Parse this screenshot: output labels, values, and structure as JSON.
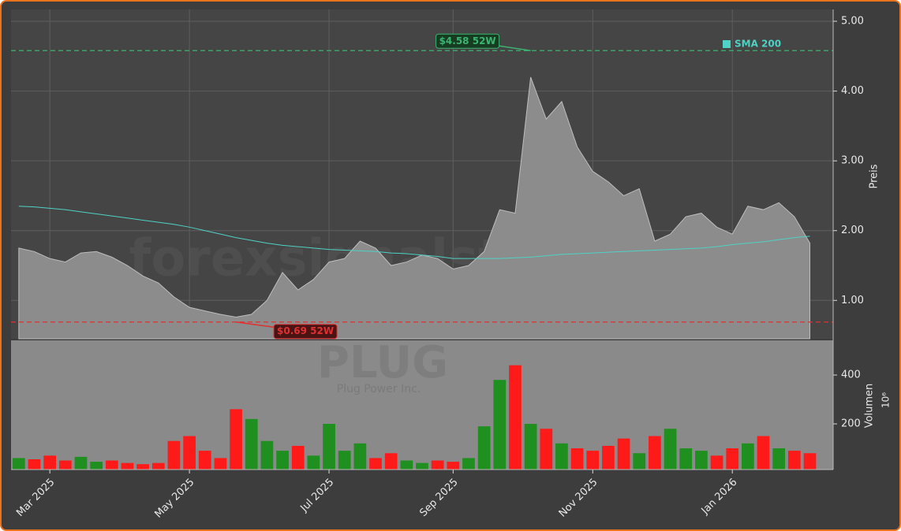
{
  "chart_data": {
    "type": "stock",
    "watermark": "forexsignalstrade",
    "symbol": "PLUG",
    "company": "Plug Power Inc.",
    "y_label": "Preis",
    "categories": [
      null,
      null,
      "Mar 2025",
      null,
      null,
      null,
      null,
      null,
      null,
      null,
      null,
      "May 2025",
      null,
      null,
      null,
      null,
      null,
      null,
      null,
      null,
      "Jul 2025",
      null,
      null,
      null,
      null,
      null,
      null,
      null,
      "Sep 2025",
      null,
      null,
      null,
      null,
      null,
      null,
      null,
      null,
      "Nov 2025",
      null,
      null,
      null,
      null,
      null,
      null,
      null,
      null,
      "Jan 2026",
      null,
      null,
      null,
      null,
      null
    ],
    "series": [
      {
        "color": "#8c8c8c",
        "values": [
          1.75,
          1.7,
          1.6,
          1.55,
          1.68,
          1.7,
          1.62,
          1.5,
          1.35,
          1.25,
          1.05,
          0.9,
          0.85,
          0.8,
          0.76,
          0.8,
          1.0,
          1.4,
          1.15,
          1.3,
          1.55,
          1.6,
          1.85,
          1.75,
          1.5,
          1.55,
          1.65,
          1.6,
          1.45,
          1.5,
          1.7,
          2.3,
          2.25,
          4.2,
          3.6,
          3.85,
          3.2,
          2.85,
          2.7,
          2.5,
          2.6,
          1.85,
          1.95,
          2.2,
          2.25,
          2.05,
          1.95,
          2.35,
          2.3,
          2.4,
          2.2,
          1.82
        ]
      },
      {
        "name": "SMA 200",
        "color": "#4fd1c5",
        "values": [
          2.35,
          2.34,
          2.32,
          2.3,
          2.27,
          2.24,
          2.21,
          2.18,
          2.15,
          2.12,
          2.09,
          2.05,
          2.0,
          1.95,
          1.9,
          1.86,
          1.82,
          1.79,
          1.77,
          1.75,
          1.73,
          1.72,
          1.71,
          1.7,
          1.68,
          1.67,
          1.65,
          1.63,
          1.6,
          1.6,
          1.6,
          1.6,
          1.61,
          1.62,
          1.64,
          1.66,
          1.67,
          1.68,
          1.69,
          1.7,
          1.71,
          1.72,
          1.73,
          1.74,
          1.75,
          1.77,
          1.8,
          1.82,
          1.84,
          1.87,
          1.9,
          1.92
        ]
      }
    ],
    "ylim": [
      0.45,
      5.17
    ],
    "yticks": [
      {
        "value": 1,
        "label": "1.00"
      },
      {
        "value": 2,
        "label": "2.00"
      },
      {
        "value": 3,
        "label": "3.00"
      },
      {
        "value": 4,
        "label": "4.00"
      },
      {
        "value": 5,
        "label": "5.00"
      }
    ],
    "grid": true,
    "annotations": [
      {
        "label": "$4.58 52W",
        "value": 4.58,
        "color": "#3cb371"
      },
      {
        "label": "$0.69 52W",
        "value": 0.69,
        "color": "#e03030"
      }
    ],
    "volume": {
      "label": "Volumen",
      "unit": "10⁶",
      "up_color": "#1f8f1f",
      "down_color": "#ff1a1a",
      "values": [
        60,
        55,
        70,
        50,
        65,
        45,
        50,
        40,
        35,
        40,
        130,
        150,
        90,
        60,
        260,
        220,
        130,
        90,
        110,
        70,
        200,
        90,
        120,
        60,
        80,
        50,
        40,
        50,
        45,
        60,
        190,
        380,
        440,
        200,
        180,
        120,
        100,
        90,
        110,
        140,
        80,
        150,
        180,
        100,
        90,
        70,
        100,
        120,
        150,
        100,
        90,
        80
      ],
      "ylim": [
        13,
        542
      ],
      "yticks": [
        200,
        400
      ]
    }
  }
}
